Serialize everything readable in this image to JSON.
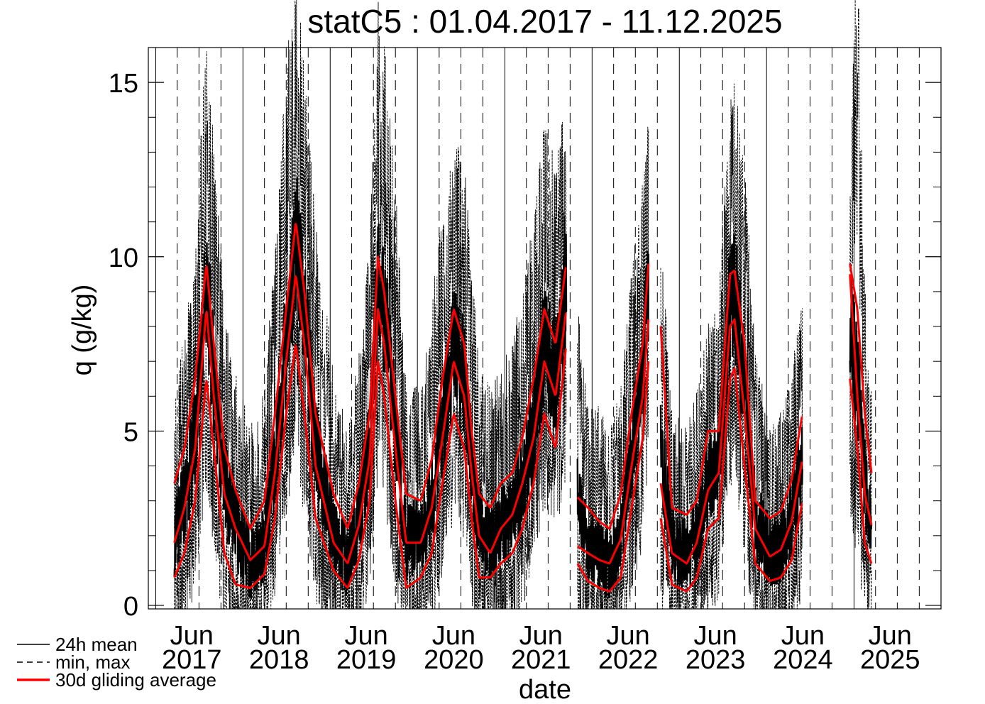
{
  "chart_data": {
    "type": "line",
    "title": "statC5 : 01.04.2017 - 11.12.2025",
    "xlabel": "date",
    "ylabel": "q (g/kg)",
    "xlim": [
      "2016-12-01",
      "2025-12-31"
    ],
    "ylim": [
      -0.1,
      16
    ],
    "y_ticks": [
      0,
      5,
      10,
      15
    ],
    "x_ticks": [
      {
        "month": "Jun",
        "year": "2017",
        "date": "2017-06-01"
      },
      {
        "month": "Jun",
        "year": "2018",
        "date": "2018-06-01"
      },
      {
        "month": "Jun",
        "year": "2019",
        "date": "2019-06-01"
      },
      {
        "month": "Jun",
        "year": "2020",
        "date": "2020-06-01"
      },
      {
        "month": "Jun",
        "year": "2021",
        "date": "2021-06-01"
      },
      {
        "month": "Jun",
        "year": "2022",
        "date": "2022-06-01"
      },
      {
        "month": "Jun",
        "year": "2023",
        "date": "2023-06-01"
      },
      {
        "month": "Jun",
        "year": "2024",
        "date": "2024-06-01"
      },
      {
        "month": "Jun",
        "year": "2025",
        "date": "2025-06-01"
      }
    ],
    "grid": "solid vertical line at each year start, dashed vertical lines quarterly",
    "legend": {
      "placement": "bottom-left",
      "entries": [
        {
          "label": "24h mean",
          "style": "solid",
          "color": "#000000"
        },
        {
          "label": "min, max",
          "style": "dashed",
          "color": "#000000"
        },
        {
          "label": "30d gliding average",
          "style": "solid-thick",
          "color": "#ff0000"
        }
      ]
    },
    "series": [
      {
        "name": "24h mean",
        "segments": [
          {
            "dates": [
              "2017-03-20",
              "2017-05-01",
              "2017-06-15",
              "2017-08-01",
              "2017-09-01",
              "2017-10-15",
              "2017-12-01",
              "2018-02-01",
              "2018-04-01",
              "2018-05-15",
              "2018-07-01",
              "2018-08-10",
              "2018-09-15",
              "2018-11-01",
              "2019-01-15",
              "2019-03-15",
              "2019-05-01",
              "2019-06-15",
              "2019-07-20",
              "2019-08-15",
              "2019-10-01",
              "2019-11-15",
              "2020-01-15",
              "2020-03-01",
              "2020-04-15",
              "2020-06-01",
              "2020-07-15",
              "2020-08-15",
              "2020-09-15",
              "2020-11-01",
              "2020-12-15",
              "2021-02-01",
              "2021-03-15",
              "2021-05-01",
              "2021-06-15",
              "2021-08-01",
              "2021-09-15"
            ],
            "values": [
              1.8,
              3.0,
              4.8,
              9.5,
              6.5,
              3.5,
              2.2,
              1.2,
              1.8,
              4.0,
              7.5,
              10.5,
              8.5,
              4.5,
              2.0,
              1.2,
              2.5,
              4.5,
              9.5,
              8.5,
              5.0,
              1.8,
              2.0,
              3.0,
              5.0,
              7.5,
              6.5,
              4.0,
              2.3,
              1.8,
              2.2,
              2.6,
              3.5,
              5.0,
              7.5,
              6.5,
              9.0
            ]
          },
          {
            "dates": [
              "2021-11-01",
              "2021-12-15",
              "2022-02-01",
              "2022-03-15",
              "2022-05-01",
              "2022-06-15",
              "2022-08-01",
              "2022-08-25"
            ],
            "values": [
              3.0,
              1.8,
              1.5,
              1.2,
              2.0,
              4.5,
              6.5,
              9.0
            ]
          },
          {
            "dates": [
              "2022-10-15",
              "2022-12-01",
              "2023-02-01",
              "2023-03-15",
              "2023-05-01",
              "2023-06-15",
              "2023-08-01",
              "2023-08-20",
              "2023-10-01",
              "2023-11-15",
              "2024-01-15",
              "2024-03-01",
              "2024-04-15",
              "2024-05-30"
            ],
            "values": [
              4.5,
              1.8,
              1.4,
              2.0,
              3.5,
              4.0,
              8.5,
              9.3,
              6.0,
              2.5,
              1.5,
              1.6,
              2.5,
              4.0
            ]
          },
          {
            "dates": [
              "2024-12-15",
              "2025-01-15",
              "2025-02-15",
              "2025-03-15"
            ],
            "values": [
              8.0,
              6.5,
              3.5,
              2.3
            ]
          }
        ]
      },
      {
        "name": "min, max",
        "segments": [
          {
            "dates": [
              "2017-03-20",
              "2017-05-01",
              "2017-06-15",
              "2017-08-01",
              "2017-09-01",
              "2017-10-15",
              "2017-12-01",
              "2018-02-01",
              "2018-04-01",
              "2018-05-15",
              "2018-07-01",
              "2018-08-10",
              "2018-09-15",
              "2018-11-01",
              "2019-01-15",
              "2019-03-15",
              "2019-05-01",
              "2019-06-15",
              "2019-07-20",
              "2019-08-15",
              "2019-10-01",
              "2019-11-15",
              "2020-01-15",
              "2020-03-01",
              "2020-04-15",
              "2020-06-01",
              "2020-07-15",
              "2020-08-15",
              "2020-09-15",
              "2020-11-01",
              "2020-12-15",
              "2021-02-01",
              "2021-03-15",
              "2021-05-01",
              "2021-06-15",
              "2021-08-01",
              "2021-09-15"
            ],
            "min": [
              0.5,
              1.0,
              2.5,
              6.0,
              3.5,
              1.0,
              0.3,
              0.0,
              0.5,
              2.0,
              5.0,
              7.0,
              5.0,
              2.0,
              0.5,
              0.0,
              1.0,
              2.5,
              6.5,
              5.5,
              2.5,
              0.3,
              0.5,
              1.0,
              3.0,
              5.0,
              4.0,
              2.0,
              0.5,
              0.3,
              0.5,
              0.8,
              1.5,
              3.0,
              5.0,
              4.0,
              6.5
            ],
            "max": [
              3.5,
              5.5,
              7.5,
              13.0,
              10.0,
              6.0,
              4.5,
              3.0,
              4.0,
              7.5,
              12.0,
              14.5,
              12.0,
              8.0,
              4.5,
              3.0,
              5.0,
              7.5,
              13.5,
              12.5,
              9.0,
              4.0,
              4.0,
              6.0,
              8.5,
              10.5,
              9.5,
              7.0,
              4.5,
              4.0,
              4.5,
              5.0,
              6.5,
              8.0,
              10.5,
              9.5,
              11.0
            ]
          },
          {
            "dates": [
              "2021-11-01",
              "2021-12-15",
              "2022-02-01",
              "2022-03-15",
              "2022-05-01",
              "2022-06-15",
              "2022-08-01",
              "2022-08-25"
            ],
            "min": [
              1.0,
              0.3,
              0.2,
              0.1,
              0.5,
              2.0,
              4.0,
              6.5
            ],
            "max": [
              6.0,
              3.5,
              3.5,
              3.0,
              4.0,
              7.0,
              9.0,
              10.5
            ]
          },
          {
            "dates": [
              "2022-10-15",
              "2022-12-01",
              "2023-02-01",
              "2023-03-15",
              "2023-05-01",
              "2023-06-15",
              "2023-08-01",
              "2023-08-20",
              "2023-10-01",
              "2023-11-15",
              "2024-01-15",
              "2024-03-01",
              "2024-04-15",
              "2024-05-30"
            ],
            "min": [
              2.0,
              0.3,
              0.1,
              0.5,
              1.5,
              2.0,
              6.0,
              6.5,
              3.5,
              0.5,
              0.1,
              0.1,
              0.8,
              2.0
            ],
            "max": [
              8.0,
              3.5,
              3.0,
              4.0,
              5.5,
              6.5,
              11.0,
              11.5,
              9.5,
              5.0,
              3.0,
              3.5,
              4.5,
              6.5
            ]
          },
          {
            "dates": [
              "2024-12-15",
              "2025-01-15",
              "2025-02-15",
              "2025-03-15"
            ],
            "min": [
              5.0,
              3.5,
              1.5,
              0.8
            ],
            "max": [
              11.0,
              15.0,
              6.5,
              4.0
            ]
          }
        ]
      },
      {
        "name": "30d gliding average",
        "segments": [
          {
            "dates": [
              "2017-03-20",
              "2017-05-01",
              "2017-06-15",
              "2017-08-01",
              "2017-09-01",
              "2017-10-15",
              "2017-12-01",
              "2018-02-01",
              "2018-04-01",
              "2018-05-15",
              "2018-07-01",
              "2018-08-10",
              "2018-09-15",
              "2018-11-01",
              "2019-01-15",
              "2019-03-15",
              "2019-05-01",
              "2019-06-15",
              "2019-07-20",
              "2019-08-15",
              "2019-10-01",
              "2019-11-15",
              "2020-01-15",
              "2020-03-01",
              "2020-04-15",
              "2020-06-01",
              "2020-07-15",
              "2020-08-15",
              "2020-09-15",
              "2020-11-01",
              "2020-12-15",
              "2021-02-01",
              "2021-03-15",
              "2021-05-01",
              "2021-06-15",
              "2021-08-01",
              "2021-09-15"
            ],
            "mean": [
              1.8,
              2.8,
              4.5,
              8.5,
              6.0,
              3.2,
              2.2,
              1.3,
              1.7,
              3.8,
              7.0,
              9.5,
              7.5,
              4.0,
              1.8,
              1.2,
              2.3,
              4.2,
              8.5,
              7.5,
              4.5,
              1.8,
              1.8,
              2.8,
              4.8,
              7.0,
              6.0,
              3.8,
              2.0,
              1.5,
              2.2,
              2.6,
              3.5,
              4.8,
              7.0,
              6.0,
              8.5
            ],
            "min": [
              0.8,
              1.5,
              3.0,
              6.5,
              4.5,
              1.5,
              0.6,
              0.5,
              0.9,
              2.5,
              5.5,
              7.5,
              5.5,
              2.5,
              1.0,
              0.5,
              1.3,
              3.0,
              7.0,
              6.0,
              3.0,
              0.5,
              0.8,
              1.5,
              3.5,
              5.5,
              4.5,
              2.5,
              0.8,
              0.8,
              1.2,
              1.5,
              2.2,
              3.5,
              5.5,
              4.5,
              7.5
            ],
            "max": [
              3.5,
              4.5,
              6.5,
              9.8,
              7.5,
              4.5,
              3.3,
              2.2,
              3.0,
              5.5,
              8.5,
              11.0,
              9.0,
              5.5,
              3.2,
              2.2,
              3.5,
              5.5,
              10.0,
              9.0,
              6.0,
              3.2,
              3.0,
              4.2,
              6.5,
              8.5,
              7.5,
              5.0,
              3.2,
              2.8,
              3.5,
              3.8,
              4.8,
              6.5,
              8.5,
              7.5,
              9.8
            ]
          },
          {
            "dates": [
              "2021-11-01",
              "2021-12-15",
              "2022-02-01",
              "2022-03-15",
              "2022-05-01",
              "2022-06-15",
              "2022-08-01",
              "2022-08-25"
            ],
            "mean": [
              1.7,
              1.5,
              1.3,
              1.2,
              1.9,
              4.0,
              6.0,
              8.2
            ],
            "min": [
              1.2,
              0.7,
              0.5,
              0.4,
              0.8,
              2.8,
              4.8,
              7.0
            ],
            "max": [
              3.1,
              2.8,
              2.4,
              2.2,
              3.2,
              5.5,
              7.5,
              9.8
            ]
          },
          {
            "dates": [
              "2022-10-15",
              "2022-12-01",
              "2023-02-01",
              "2023-03-15",
              "2023-05-01",
              "2023-06-15",
              "2023-08-01",
              "2023-08-20",
              "2023-10-01",
              "2023-11-15",
              "2024-01-15",
              "2024-03-01",
              "2024-04-15",
              "2024-05-30"
            ],
            "mean": [
              3.5,
              1.5,
              1.2,
              1.8,
              3.3,
              3.8,
              8.0,
              8.2,
              5.5,
              2.2,
              1.4,
              1.6,
              2.4,
              4.2
            ],
            "min": [
              2.5,
              0.6,
              0.4,
              0.8,
              2.2,
              2.5,
              6.5,
              6.8,
              4.0,
              1.2,
              0.7,
              0.8,
              1.3,
              3.0
            ],
            "max": [
              8.0,
              2.8,
              2.6,
              3.0,
              5.0,
              5.0,
              9.5,
              9.6,
              7.5,
              3.0,
              2.5,
              2.7,
              3.6,
              5.5
            ]
          },
          {
            "dates": [
              "2024-12-15",
              "2025-01-15",
              "2025-02-15",
              "2025-03-15"
            ],
            "mean": [
              9.5,
              6.0,
              3.2,
              2.3
            ],
            "min": [
              6.5,
              4.5,
              1.8,
              1.2
            ],
            "max": [
              9.8,
              8.5,
              5.5,
              3.8
            ]
          }
        ]
      }
    ]
  }
}
